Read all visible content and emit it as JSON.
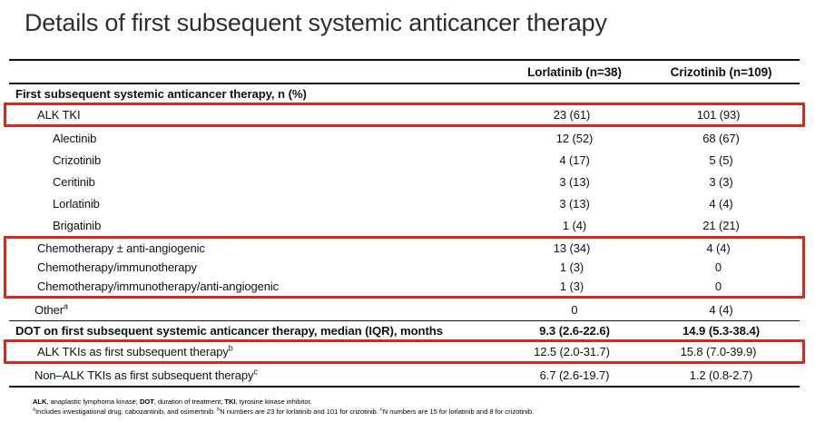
{
  "slide": {
    "title": "Details of first subsequent systemic anticancer therapy"
  },
  "table": {
    "columns": [
      "Lorlatinib (n=38)",
      "Crizotinib (n=109)"
    ],
    "rows": [
      {
        "label": "First subsequent systemic anticancer therapy, n (%)",
        "indent": 0,
        "bold": true,
        "col1": "",
        "col2": ""
      },
      {
        "label": "ALK TKI",
        "indent": 1,
        "col1": "23 (61)",
        "col2": "101 (93)",
        "box": "box1"
      },
      {
        "label": "Alectinib",
        "indent": 2,
        "col1": "12 (52)",
        "col2": "68 (67)"
      },
      {
        "label": "Crizotinib",
        "indent": 2,
        "col1": "4 (17)",
        "col2": "5 (5)"
      },
      {
        "label": "Ceritinib",
        "indent": 2,
        "col1": "3 (13)",
        "col2": "3 (3)"
      },
      {
        "label": "Lorlatinib",
        "indent": 2,
        "col1": "3 (13)",
        "col2": "4 (4)"
      },
      {
        "label": "Brigatinib",
        "indent": 2,
        "col1": "1 (4)",
        "col2": "21 (21)"
      },
      {
        "label": "Chemotherapy ± anti-angiogenic",
        "indent": 1,
        "col1": "13 (34)",
        "col2": "4 (4)",
        "box": "box2"
      },
      {
        "label": "Chemotherapy/immunotherapy",
        "indent": 1,
        "col1": "1 (3)",
        "col2": "0",
        "box": "box2"
      },
      {
        "label": "Chemotherapy/immunotherapy/anti-angiogenic",
        "indent": 1,
        "col1": "1 (3)",
        "col2": "0",
        "box": "box2"
      },
      {
        "label": "Other",
        "sup": "a",
        "indent": 1,
        "col1": "0",
        "col2": "4 (4)",
        "rule_after": true
      },
      {
        "label": "DOT on first subsequent systemic anticancer therapy, median (IQR), months",
        "indent": 0,
        "bold": true,
        "col1": "9.3 (2.6-22.6)",
        "col2": "14.9 (5.3-38.4)"
      },
      {
        "label": "ALK TKIs as first subsequent therapy",
        "sup": "b",
        "indent": 1,
        "col1": "12.5 (2.0-31.7)",
        "col2": "15.8 (7.0-39.9)",
        "box": "box3"
      },
      {
        "label": "Non–ALK TKIs as first subsequent therapy",
        "sup": "c",
        "indent": 1,
        "col1": "6.7 (2.6-19.7)",
        "col2": "1.2 (0.8-2.7)"
      }
    ]
  },
  "footnotes": {
    "line1": [
      {
        "t": "ALK",
        "b": true
      },
      {
        "t": ", anaplastic lymphoma kinase; "
      },
      {
        "t": "DOT",
        "b": true
      },
      {
        "t": ", duration of treatment; "
      },
      {
        "t": "TKI",
        "b": true
      },
      {
        "t": ", tyrosine kinase inhibitor."
      }
    ],
    "line2": [
      {
        "t": "a",
        "sup": true
      },
      {
        "t": "Includes investigational drug, cabozantinib, and osimertinib. "
      },
      {
        "t": "b",
        "sup": true
      },
      {
        "t": "N numbers are 23 for lorlatinib and 101 for crizotinib. "
      },
      {
        "t": "c",
        "sup": true
      },
      {
        "t": "N numbers are 15 for lorlatinib and 8 for crizotinib."
      }
    ]
  },
  "colors": {
    "highlight_red": "#d5281f"
  }
}
